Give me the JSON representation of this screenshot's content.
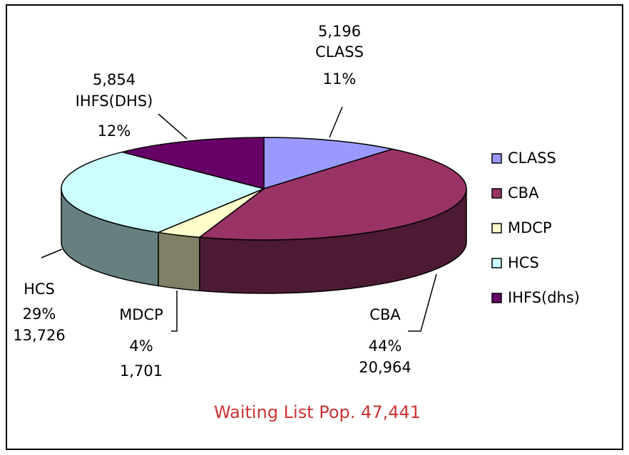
{
  "chart_data": {
    "type": "pie3d",
    "categories": [
      "CLASS",
      "CBA",
      "MDCP",
      "HCS",
      "IHFS(dhs)"
    ],
    "slice_labels": [
      "CLASS",
      "CBA",
      "MDCP",
      "HCS",
      "IHFS(DHS)"
    ],
    "values": [
      5196,
      20964,
      1701,
      13726,
      5854
    ],
    "value_labels": [
      "5,196",
      "20,964",
      "1,701",
      "13,726",
      "5,854"
    ],
    "percents": [
      11,
      44,
      4,
      29,
      12
    ],
    "percent_labels": [
      "11%",
      "44%",
      "4%",
      "29%",
      "12%"
    ],
    "colors": [
      "#9999ff",
      "#993366",
      "#ffffcc",
      "#ccffff",
      "#660066"
    ],
    "legend": "right",
    "annotation": "Waiting List Pop. 47,441"
  }
}
